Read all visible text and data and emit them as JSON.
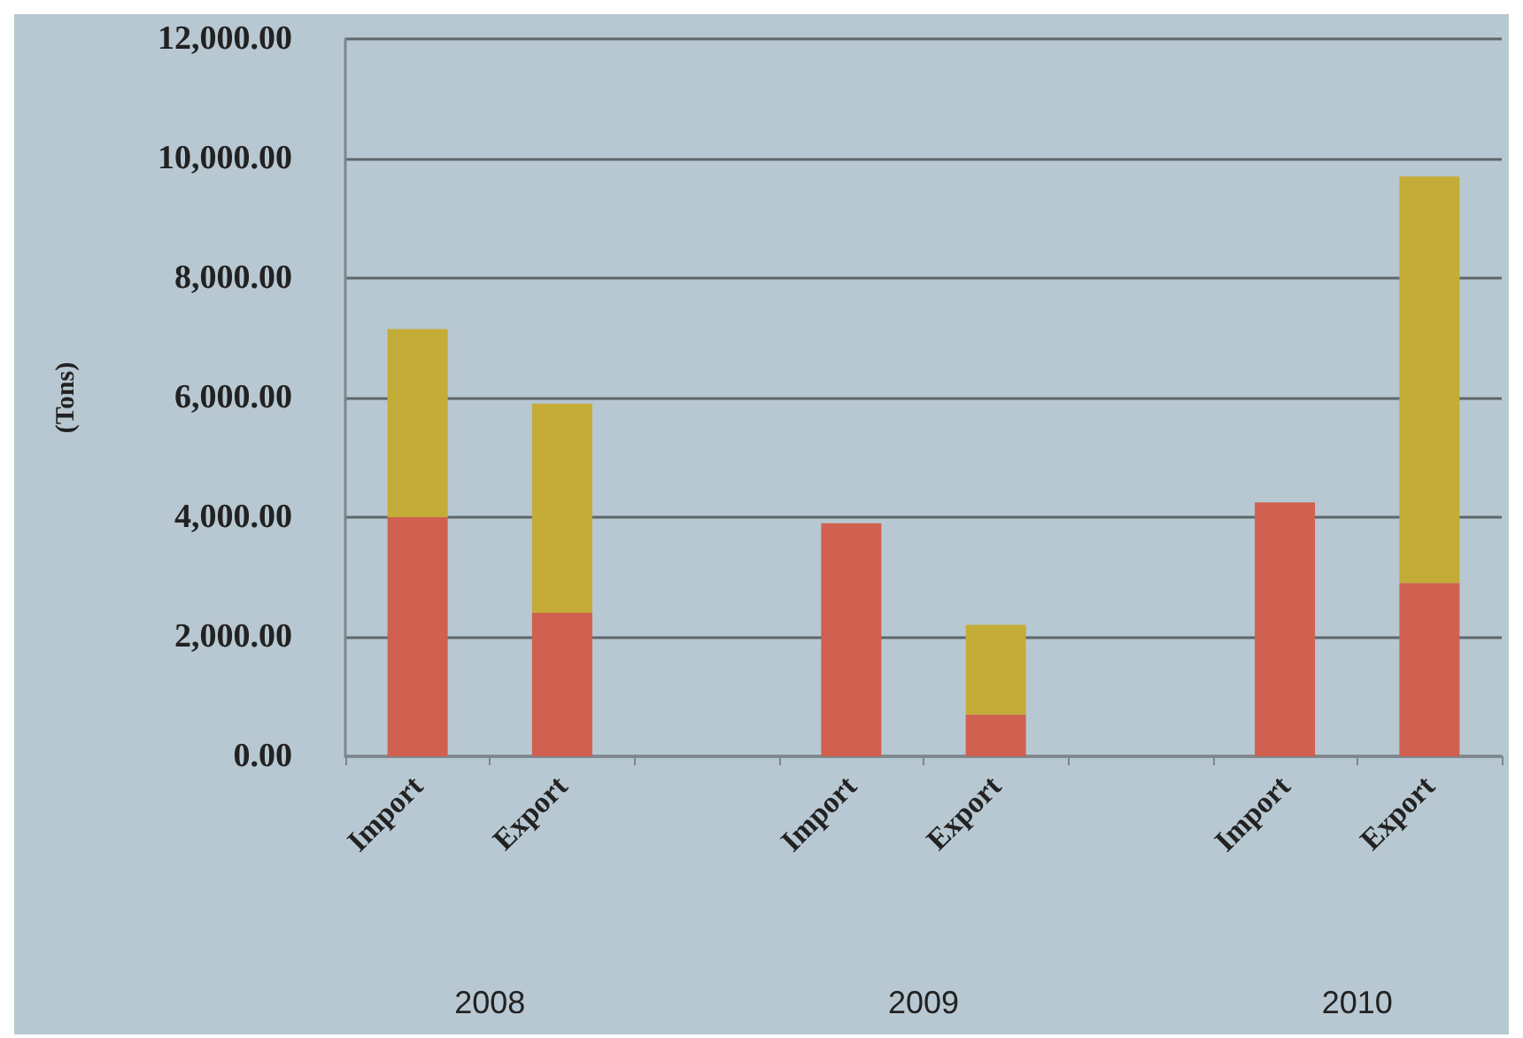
{
  "chart_data": {
    "type": "bar",
    "stacked": true,
    "ylabel": "(Tons)",
    "categories": [
      "Import",
      "Export",
      null,
      "Import",
      "Export",
      null,
      "Import",
      "Export"
    ],
    "series": [
      {
        "color": "#d0604f",
        "values": [
          4000,
          2400,
          null,
          3900,
          700,
          null,
          4250,
          2900
        ]
      },
      {
        "color": "#c4ac38",
        "values": [
          3150,
          3500,
          null,
          0,
          1500,
          null,
          0,
          6800
        ]
      }
    ],
    "ylim": [
      0,
      12000
    ],
    "yticks": [
      {
        "value": 0,
        "label": "0.00"
      },
      {
        "value": 2000,
        "label": "2,000.00"
      },
      {
        "value": 4000,
        "label": "4,000.00"
      },
      {
        "value": 6000,
        "label": "6,000.00"
      },
      {
        "value": 8000,
        "label": "8,000.00"
      },
      {
        "value": 10000,
        "label": "10,000.00"
      },
      {
        "value": 12000,
        "label": "12,000.00"
      }
    ],
    "grid": "y",
    "annotations": [
      "2008",
      "2009",
      "2010"
    ]
  }
}
